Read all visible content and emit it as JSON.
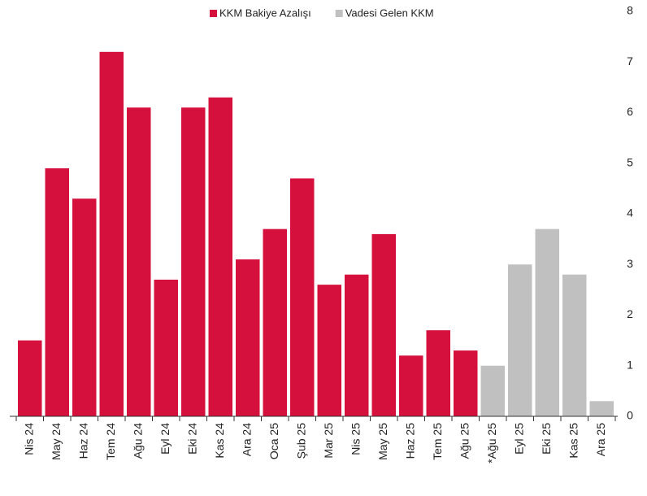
{
  "chart_data": {
    "type": "bar",
    "categories": [
      "Nis 24",
      "May 24",
      "Haz 24",
      "Tem 24",
      "Ağu 24",
      "Eyl 24",
      "Eki 24",
      "Kas 24",
      "Ara 24",
      "Oca 25",
      "Şub 25",
      "Mar 25",
      "Nis 25",
      "May 25",
      "Haz 25",
      "Tem 25",
      "Ağu 25",
      "*Ağu 25",
      "Eyl 25",
      "Eki 25",
      "Kas 25",
      "Ara 25"
    ],
    "series": [
      {
        "name": "KKM Bakiye Azalışı",
        "color": "#d5103c",
        "values": [
          1.5,
          4.9,
          4.3,
          7.2,
          6.1,
          2.7,
          6.1,
          6.3,
          3.1,
          3.7,
          4.7,
          2.6,
          2.8,
          3.6,
          1.2,
          1.7,
          1.3,
          null,
          null,
          null,
          null,
          null
        ]
      },
      {
        "name": "Vadesi Gelen KKM",
        "color": "#c0c0c0",
        "values": [
          null,
          null,
          null,
          null,
          null,
          null,
          null,
          null,
          null,
          null,
          null,
          null,
          null,
          null,
          null,
          null,
          null,
          1.0,
          3.0,
          3.7,
          2.8,
          0.3
        ]
      }
    ],
    "ylim": [
      0,
      8
    ],
    "yticks": [
      0,
      1,
      2,
      3,
      4,
      5,
      6,
      7,
      8
    ],
    "y_axis_side": "right",
    "grid": false
  }
}
